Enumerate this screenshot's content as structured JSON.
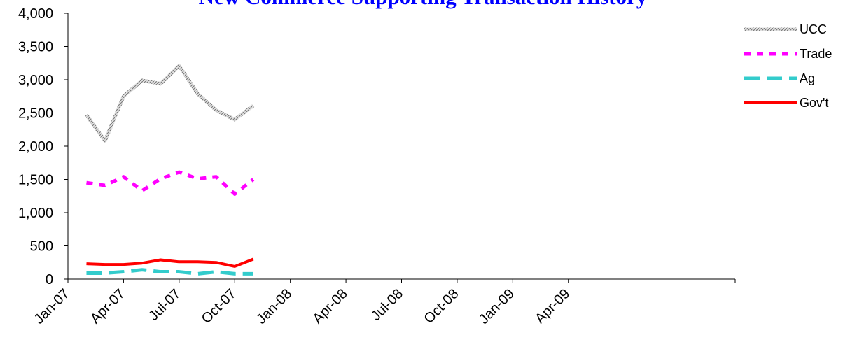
{
  "chart_data": {
    "type": "line",
    "title": "New Commerce Supporting Transaction History",
    "title_color": "#0000ff",
    "xlabel": "",
    "ylabel": "",
    "x_tick_labels": [
      "Jan-07",
      "Apr-07",
      "Jul-07",
      "Oct-07",
      "Jan-08",
      "Apr-08",
      "Jul-08",
      "Oct-08",
      "Jan-09",
      "Apr-09"
    ],
    "x_range": [
      "Jan-07",
      "Dec-09"
    ],
    "x": [
      "Feb-07",
      "Mar-07",
      "Apr-07",
      "May-07",
      "Jun-07",
      "Jul-07",
      "Aug-07",
      "Sep-07",
      "Oct-07",
      "Nov-07"
    ],
    "ylim": [
      0,
      4000
    ],
    "y_ticks": [
      "0",
      "500",
      "1,000",
      "1,500",
      "2,000",
      "2,500",
      "3,000",
      "3,500",
      "4,000"
    ],
    "grid": false,
    "legend_position": "top-right",
    "series": [
      {
        "name": "UCC",
        "color": "#b0b0b0",
        "style": "hatched",
        "values": [
          2470,
          2080,
          2750,
          2990,
          2940,
          3210,
          2790,
          2540,
          2400,
          2610
        ]
      },
      {
        "name": "Trade",
        "color": "#ff00ff",
        "style": "dotted",
        "values": [
          1450,
          1410,
          1540,
          1330,
          1510,
          1610,
          1510,
          1540,
          1280,
          1500
        ]
      },
      {
        "name": "Ag",
        "color": "#33cccc",
        "style": "dashed",
        "values": [
          90,
          90,
          110,
          140,
          110,
          110,
          80,
          110,
          80,
          80
        ]
      },
      {
        "name": "Gov't",
        "color": "#ff0000",
        "style": "solid",
        "values": [
          230,
          220,
          220,
          240,
          290,
          260,
          260,
          250,
          190,
          300
        ]
      }
    ]
  }
}
